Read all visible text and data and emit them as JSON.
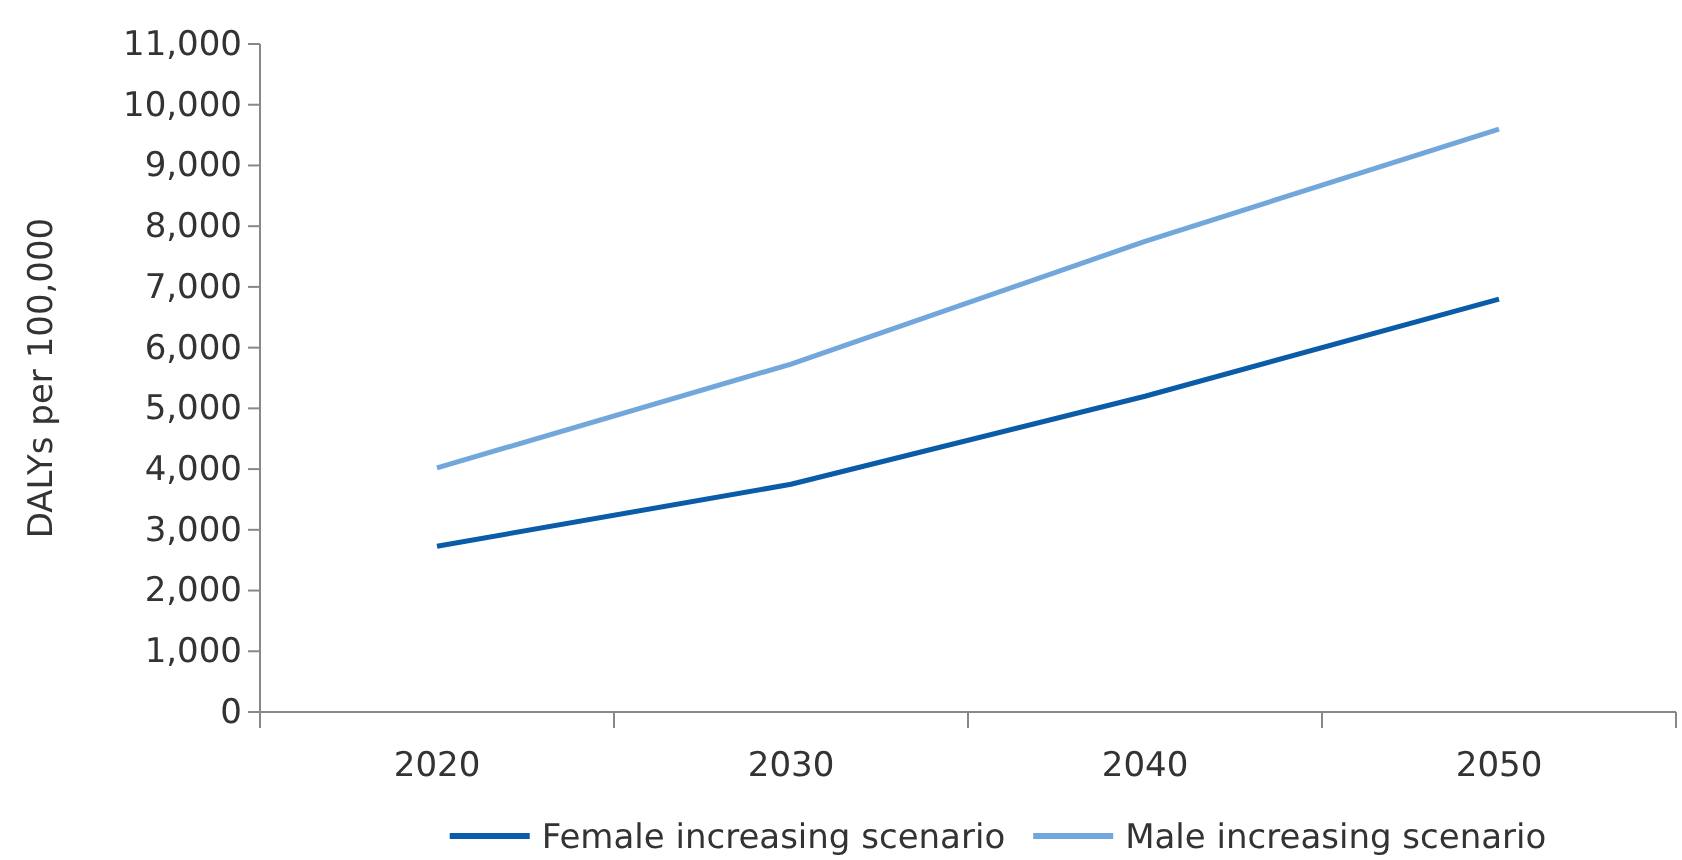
{
  "chart_data": {
    "type": "line",
    "ylabel": "DALYs per 100,000",
    "categories": [
      "2020",
      "2030",
      "2040",
      "2050"
    ],
    "series": [
      {
        "name": "Female increasing scenario",
        "color": "#0a5ba8",
        "values": [
          2730,
          3750,
          5200,
          6800
        ]
      },
      {
        "name": "Male increasing scenario",
        "color": "#72a7db",
        "values": [
          4020,
          5730,
          7750,
          9600
        ]
      }
    ],
    "ylim": [
      0,
      11000
    ],
    "yticks": [
      {
        "value": 0,
        "label": "0"
      },
      {
        "value": 1000,
        "label": "1,000"
      },
      {
        "value": 2000,
        "label": "2,000"
      },
      {
        "value": 3000,
        "label": "3,000"
      },
      {
        "value": 4000,
        "label": "4,000"
      },
      {
        "value": 5000,
        "label": "5,000"
      },
      {
        "value": 6000,
        "label": "6,000"
      },
      {
        "value": 7000,
        "label": "7,000"
      },
      {
        "value": 8000,
        "label": "8,000"
      },
      {
        "value": 9000,
        "label": "9,000"
      },
      {
        "value": 10000,
        "label": "10,000"
      },
      {
        "value": 11000,
        "label": "11,000"
      }
    ],
    "legend": "bottom",
    "marker": "none",
    "line_style": "solid"
  }
}
